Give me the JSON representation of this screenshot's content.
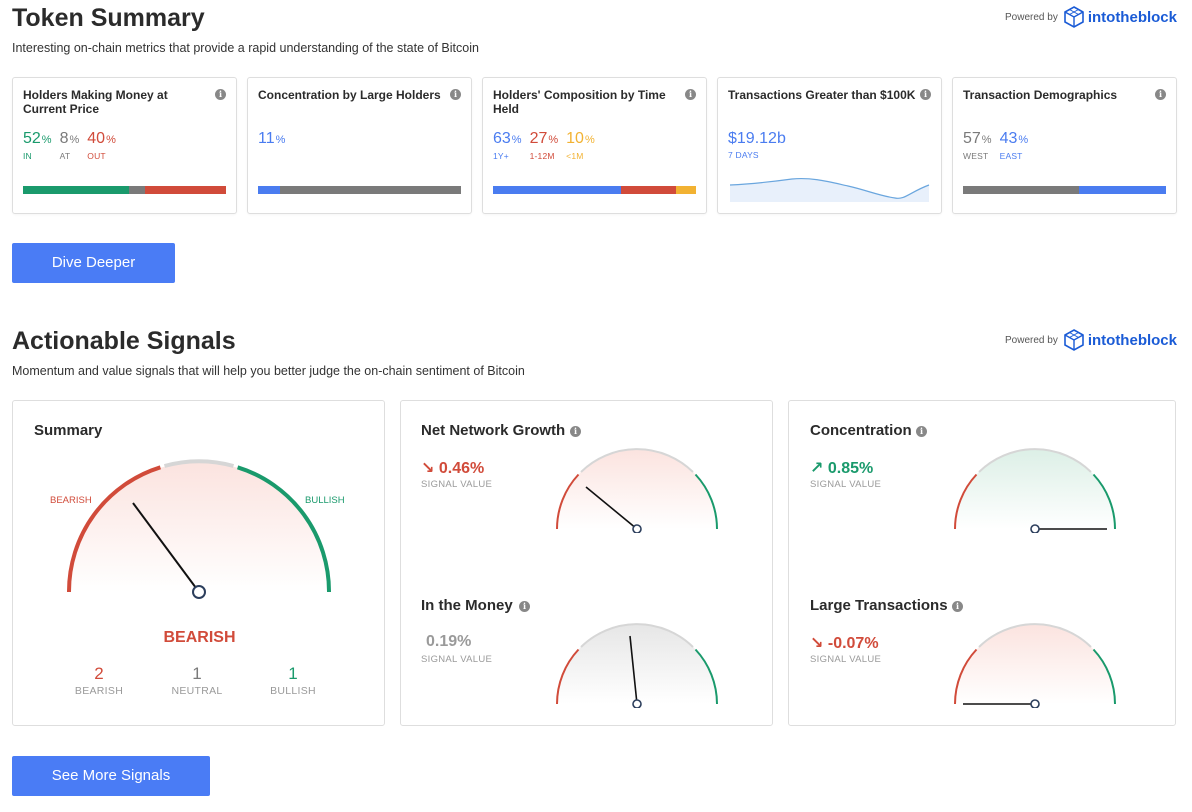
{
  "token_summary": {
    "title": "Token Summary",
    "subtitle": "Interesting on-chain metrics that provide a rapid understanding of the state of Bitcoin",
    "powered_label": "Powered by",
    "brand": "intotheblock",
    "cards": [
      {
        "title": "Holders Making Money at Current Price",
        "metrics": [
          {
            "value": "52",
            "unit": "%",
            "label": "IN"
          },
          {
            "value": "8",
            "unit": "%",
            "label": "AT"
          },
          {
            "value": "40",
            "unit": "%",
            "label": "OUT"
          }
        ],
        "bar": [
          0.52,
          0.08,
          0.4
        ]
      },
      {
        "title": "Concentration by Large Holders",
        "metrics": [
          {
            "value": "11",
            "unit": "%",
            "label": ""
          }
        ],
        "bar": [
          0.11,
          0.89
        ]
      },
      {
        "title": "Holders' Composition by Time Held",
        "metrics": [
          {
            "value": "63",
            "unit": "%",
            "label": "1Y+"
          },
          {
            "value": "27",
            "unit": "%",
            "label": "1-12M"
          },
          {
            "value": "10",
            "unit": "%",
            "label": "<1M"
          }
        ],
        "bar": [
          0.63,
          0.27,
          0.1
        ]
      },
      {
        "title": "Transactions Greater than $100K",
        "metrics": [
          {
            "value": "$19.12b",
            "unit": "",
            "label": "7 DAYS"
          }
        ]
      },
      {
        "title": "Transaction Demographics",
        "metrics": [
          {
            "value": "57",
            "unit": "%",
            "label": "WEST"
          },
          {
            "value": "43",
            "unit": "%",
            "label": "EAST"
          }
        ],
        "bar": [
          0.57,
          0.43
        ]
      }
    ],
    "button": "Dive Deeper"
  },
  "signals": {
    "title": "Actionable Signals",
    "subtitle": "Momentum and value signals that will help you better judge the on-chain sentiment of Bitcoin",
    "powered_label": "Powered by",
    "brand": "intotheblock",
    "summary": {
      "title": "Summary",
      "left_label": "BEARISH",
      "right_label": "BULLISH",
      "verdict": "BEARISH",
      "counts": [
        {
          "value": "2",
          "label": "BEARISH"
        },
        {
          "value": "1",
          "label": "NEUTRAL"
        },
        {
          "value": "1",
          "label": "BULLISH"
        }
      ]
    },
    "items": [
      {
        "title": "Net Network Growth",
        "value": "0.46%",
        "arrow": "↘",
        "sub": "SIGNAL VALUE",
        "state": "bearish"
      },
      {
        "title": "Concentration",
        "value": "0.85%",
        "arrow": "↗",
        "sub": "SIGNAL VALUE",
        "state": "bullish"
      },
      {
        "title": "In the Money",
        "value": "0.19%",
        "arrow": "",
        "sub": "SIGNAL VALUE",
        "state": "neutral"
      },
      {
        "title": "Large Transactions",
        "value": "-0.07%",
        "arrow": "↘",
        "sub": "SIGNAL VALUE",
        "state": "bearish"
      }
    ],
    "button": "See More Signals"
  },
  "colors": {
    "green": "#1a9a6c",
    "red": "#d14b3a",
    "gray": "#7a7a7a",
    "blue": "#4a7cf0",
    "orange": "#f2b232",
    "button": "#4a7cf5"
  }
}
